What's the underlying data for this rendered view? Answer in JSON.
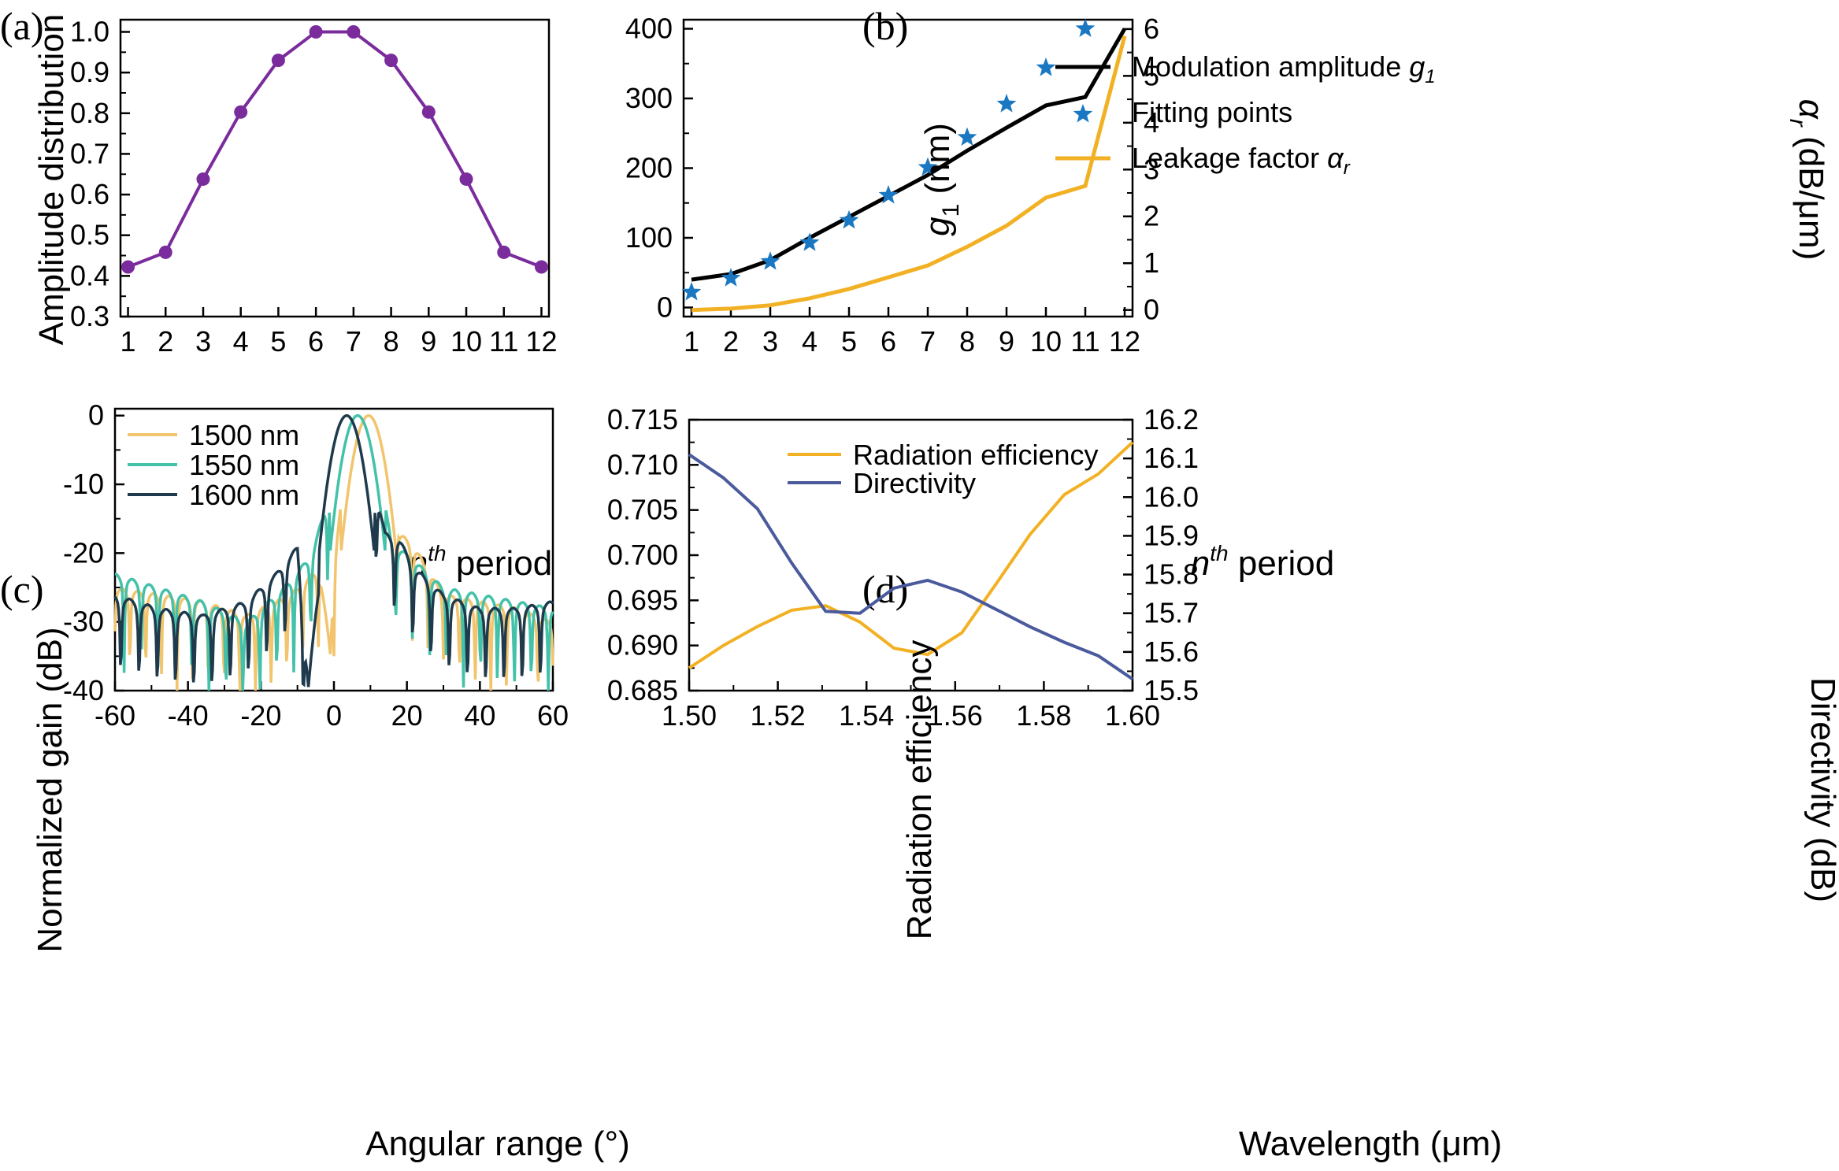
{
  "chart_data": [
    {
      "id": "a",
      "panel_label": "(a)",
      "type": "line",
      "xlabel_base": "n",
      "xlabel_sup": "th",
      "xlabel_rest": " period",
      "ylabel": "Amplitude distribution",
      "xlim": [
        0.8,
        12.2
      ],
      "ylim": [
        0.3,
        1.03
      ],
      "x_ticks": [
        "1",
        "2",
        "3",
        "4",
        "5",
        "6",
        "7",
        "8",
        "9",
        "10",
        "11",
        "12"
      ],
      "y_ticks": [
        "0.3",
        "0.4",
        "0.5",
        "0.6",
        "0.7",
        "0.8",
        "0.9",
        "1.0"
      ],
      "color": "#7a2b9c",
      "x": [
        1,
        2,
        3,
        4,
        5,
        6,
        7,
        8,
        9,
        10,
        11,
        12
      ],
      "y": [
        0.422,
        0.458,
        0.638,
        0.803,
        0.93,
        1.0,
        1.0,
        0.93,
        0.803,
        0.638,
        0.458,
        0.422
      ]
    },
    {
      "id": "b",
      "panel_label": "(b)",
      "type": "line",
      "xlabel_base": "n",
      "xlabel_sup": "th",
      "xlabel_rest": " period",
      "ylabel_base": "g",
      "ylabel_sub": "1",
      "ylabel_rest": " (nm)",
      "y2label_base": "α",
      "y2label_sub": "r",
      "y2label_rest": " (dB/μm)",
      "xlim": [
        0.8,
        12.2
      ],
      "ylim": [
        0,
        400
      ],
      "y2lim": [
        -0.14,
        6
      ],
      "x_ticks": [
        "1",
        "2",
        "3",
        "4",
        "5",
        "6",
        "7",
        "8",
        "9",
        "10",
        "11",
        "12"
      ],
      "y_ticks": [
        "0",
        "100",
        "200",
        "300",
        "400"
      ],
      "y2_ticks": [
        "0",
        "1",
        "2",
        "3",
        "4",
        "5",
        "6"
      ],
      "legend": {
        "mod_label": "Modulation amplitude ",
        "mod_italic": "g",
        "mod_sub": "1",
        "fit_label": "Fitting points",
        "leak_label": "Leakage factor ",
        "leak_italic": "α",
        "leak_sub": "r"
      },
      "series": [
        {
          "name": "Modulation amplitude g1",
          "axis": "left",
          "color": "#000000",
          "x": [
            1,
            2,
            3,
            4,
            5,
            6,
            7,
            8,
            9,
            10,
            11,
            12
          ],
          "values": [
            40,
            48,
            68,
            100,
            130,
            160,
            190,
            225,
            258,
            290,
            302,
            400
          ]
        },
        {
          "name": "Fitting points",
          "axis": "left",
          "color": "#1a78c2",
          "marker": "star",
          "x": [
            1,
            2,
            3,
            4,
            5,
            6,
            7,
            8,
            9,
            10,
            11
          ],
          "values": [
            22,
            42,
            66,
            93,
            125,
            161,
            201,
            244,
            292,
            344,
            400
          ]
        },
        {
          "name": "Leakage factor αr",
          "axis": "right",
          "color": "#f2b124",
          "x": [
            1,
            2,
            3,
            4,
            5,
            6,
            7,
            8,
            9,
            10,
            11,
            12
          ],
          "values": [
            0.0,
            0.03,
            0.1,
            0.25,
            0.45,
            0.7,
            0.95,
            1.35,
            1.8,
            2.4,
            2.65,
            5.85
          ]
        }
      ]
    },
    {
      "id": "c",
      "panel_label": "(c)",
      "type": "line",
      "xlabel": "Angular range (°)",
      "ylabel": "Normalized gain (dB)",
      "xlim": [
        -60,
        60
      ],
      "ylim": [
        -40,
        0
      ],
      "x_ticks": [
        "-60",
        "-40",
        "-20",
        "0",
        "20",
        "40",
        "60"
      ],
      "y_ticks": [
        "-40",
        "-30",
        "-20",
        "-10",
        "0"
      ],
      "series": [
        {
          "name": "1500 nm",
          "color": "#f2c46d",
          "peak": 9.5,
          "main_width": 7.5,
          "x": [
            -60,
            -48,
            -36,
            -24,
            -12,
            -4,
            -1,
            0,
            4,
            9.5,
            15,
            18,
            22,
            30,
            40,
            50,
            60
          ],
          "values": [
            -26,
            -27,
            -28,
            -30,
            -27,
            -23,
            -35,
            -22,
            -5,
            0,
            -5,
            -18,
            -20,
            -27,
            -28,
            -29,
            -31
          ]
        },
        {
          "name": "1550 nm",
          "color": "#44c1a9",
          "peak": 6.5,
          "main_width": 7.5,
          "x": [
            -60,
            -48,
            -36,
            -24,
            -12,
            -6,
            0,
            6.5,
            12,
            16,
            20,
            30,
            40,
            50,
            60
          ],
          "values": [
            -24,
            -26,
            -28,
            -31,
            -25,
            -21,
            -10,
            0,
            -8,
            -20,
            -21,
            -26,
            -27,
            -28,
            -29
          ]
        },
        {
          "name": "1600 nm",
          "color": "#1f3a4c",
          "peak": 3.5,
          "main_width": 7.5,
          "x": [
            -60,
            -48,
            -36,
            -24,
            -16,
            -10,
            -7,
            0,
            3.5,
            9,
            14,
            18,
            22,
            30,
            40,
            50,
            60
          ],
          "values": [
            -27,
            -29,
            -30,
            -28,
            -24,
            -20,
            -40,
            -4,
            0,
            -5,
            -18,
            -19,
            -23,
            -27,
            -29,
            -29,
            -28
          ]
        }
      ]
    },
    {
      "id": "d",
      "panel_label": "(d)",
      "type": "line",
      "xlabel": "Wavelength (μm)",
      "ylabel": "Radiation efficiency",
      "y2label": "Directivity (dB)",
      "xlim": [
        1.5,
        1.6
      ],
      "ylim": [
        0.685,
        0.715
      ],
      "y2lim": [
        15.5,
        16.2
      ],
      "x_ticks": [
        "1.50",
        "1.52",
        "1.54",
        "1.56",
        "1.58",
        "1.60"
      ],
      "y_ticks": [
        "0.685",
        "0.690",
        "0.695",
        "0.700",
        "0.705",
        "0.710",
        "0.715"
      ],
      "y2_ticks": [
        "15.5",
        "15.6",
        "15.7",
        "15.8",
        "15.9",
        "16.0",
        "16.1",
        "16.2"
      ],
      "series": [
        {
          "name": "Radiation efficiency",
          "axis": "left",
          "color": "#f2b124",
          "x": [
            1.5,
            1.5077,
            1.5154,
            1.5231,
            1.5308,
            1.5385,
            1.5462,
            1.5538,
            1.5615,
            1.5692,
            1.5769,
            1.5846,
            1.5923,
            1.6
          ],
          "values": [
            0.6875,
            0.69,
            0.6921,
            0.6939,
            0.6944,
            0.6926,
            0.6897,
            0.689,
            0.6914,
            0.6968,
            0.7023,
            0.7067,
            0.709,
            0.7125
          ]
        },
        {
          "name": "Directivity",
          "axis": "right",
          "color": "#4a5a9c",
          "x": [
            1.5,
            1.5077,
            1.5154,
            1.5231,
            1.5308,
            1.5385,
            1.5462,
            1.5538,
            1.5615,
            1.5692,
            1.5769,
            1.5846,
            1.5923,
            1.6
          ],
          "values": [
            16.11,
            16.05,
            15.97,
            15.83,
            15.705,
            15.7,
            15.765,
            15.785,
            15.755,
            15.71,
            15.665,
            15.625,
            15.59,
            15.53
          ]
        }
      ]
    }
  ]
}
